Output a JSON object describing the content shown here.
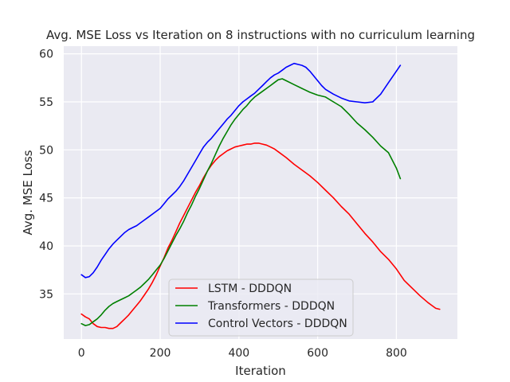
{
  "chart_data": {
    "type": "line",
    "title": "Avg. MSE Loss vs Iteration on 8 instructions with no curriculum learning",
    "xlabel": "Iteration",
    "ylabel": "Avg. MSE Loss",
    "xlim": [
      -45,
      955
    ],
    "ylim": [
      30.3,
      60.8
    ],
    "xticks": [
      0,
      200,
      400,
      600,
      800
    ],
    "yticks": [
      35,
      40,
      45,
      50,
      55,
      60
    ],
    "grid": true,
    "legend_position": "lower-center",
    "series": [
      {
        "name": "LSTM - DDDQN",
        "color": "#ff0000",
        "x": [
          0,
          10,
          20,
          30,
          40,
          50,
          60,
          70,
          80,
          90,
          100,
          110,
          120,
          130,
          140,
          150,
          160,
          170,
          180,
          190,
          200,
          210,
          220,
          230,
          240,
          250,
          260,
          270,
          280,
          290,
          300,
          310,
          320,
          330,
          340,
          350,
          360,
          370,
          380,
          390,
          400,
          410,
          420,
          430,
          440,
          450,
          460,
          470,
          480,
          490,
          500,
          520,
          540,
          560,
          580,
          600,
          620,
          640,
          660,
          680,
          700,
          720,
          740,
          760,
          780,
          800,
          820,
          840,
          860,
          880,
          900,
          910
        ],
        "values": [
          32.9,
          32.6,
          32.4,
          31.9,
          31.6,
          31.5,
          31.5,
          31.4,
          31.4,
          31.6,
          32.0,
          32.4,
          32.8,
          33.3,
          33.8,
          34.3,
          34.9,
          35.5,
          36.2,
          37.0,
          37.9,
          38.8,
          39.8,
          40.6,
          41.5,
          42.4,
          43.2,
          44.0,
          44.8,
          45.6,
          46.3,
          47.1,
          47.8,
          48.4,
          48.9,
          49.3,
          49.6,
          49.9,
          50.1,
          50.3,
          50.4,
          50.5,
          50.6,
          50.6,
          50.7,
          50.7,
          50.6,
          50.5,
          50.3,
          50.1,
          49.8,
          49.2,
          48.5,
          47.9,
          47.3,
          46.6,
          45.8,
          45.0,
          44.1,
          43.3,
          42.3,
          41.3,
          40.4,
          39.4,
          38.6,
          37.6,
          36.4,
          35.6,
          34.8,
          34.1,
          33.5,
          33.4
        ]
      },
      {
        "name": "Transformers - DDDQN",
        "color": "#008000",
        "x": [
          0,
          10,
          20,
          30,
          40,
          50,
          60,
          70,
          80,
          90,
          100,
          110,
          120,
          130,
          140,
          150,
          160,
          170,
          180,
          190,
          200,
          210,
          220,
          230,
          240,
          250,
          260,
          270,
          280,
          290,
          300,
          310,
          320,
          330,
          340,
          350,
          360,
          370,
          380,
          390,
          400,
          410,
          420,
          430,
          440,
          450,
          460,
          470,
          480,
          490,
          500,
          510,
          520,
          540,
          560,
          580,
          600,
          620,
          640,
          660,
          680,
          700,
          720,
          740,
          760,
          780,
          800,
          810
        ],
        "values": [
          31.9,
          31.7,
          31.8,
          32.1,
          32.4,
          32.8,
          33.3,
          33.7,
          34.0,
          34.2,
          34.4,
          34.6,
          34.8,
          35.1,
          35.4,
          35.7,
          36.1,
          36.5,
          37.0,
          37.5,
          38.0,
          38.7,
          39.5,
          40.3,
          41.1,
          41.8,
          42.6,
          43.5,
          44.3,
          45.2,
          46.0,
          46.9,
          47.8,
          48.6,
          49.5,
          50.4,
          51.2,
          51.9,
          52.6,
          53.2,
          53.7,
          54.2,
          54.6,
          55.1,
          55.5,
          55.8,
          56.1,
          56.4,
          56.7,
          57.0,
          57.3,
          57.4,
          57.2,
          56.8,
          56.4,
          56.0,
          55.7,
          55.5,
          55.0,
          54.5,
          53.7,
          52.8,
          52.1,
          51.3,
          50.4,
          49.7,
          48.1,
          47.0
        ]
      },
      {
        "name": "Control Vectors - DDDQN",
        "color": "#0000ff",
        "x": [
          0,
          10,
          20,
          30,
          40,
          50,
          60,
          70,
          80,
          90,
          100,
          110,
          120,
          130,
          140,
          150,
          160,
          170,
          180,
          190,
          200,
          210,
          220,
          230,
          240,
          250,
          260,
          270,
          280,
          290,
          300,
          310,
          320,
          330,
          340,
          350,
          360,
          370,
          380,
          390,
          400,
          410,
          420,
          430,
          440,
          450,
          460,
          470,
          480,
          490,
          500,
          510,
          520,
          530,
          540,
          550,
          560,
          570,
          580,
          590,
          600,
          610,
          620,
          640,
          660,
          680,
          700,
          720,
          740,
          760,
          770,
          780,
          790,
          800,
          810
        ],
        "values": [
          37.0,
          36.7,
          36.8,
          37.2,
          37.8,
          38.5,
          39.1,
          39.7,
          40.2,
          40.6,
          41.0,
          41.4,
          41.7,
          41.9,
          42.1,
          42.4,
          42.7,
          43.0,
          43.3,
          43.6,
          43.9,
          44.4,
          44.9,
          45.3,
          45.7,
          46.2,
          46.8,
          47.5,
          48.2,
          48.9,
          49.6,
          50.3,
          50.8,
          51.2,
          51.7,
          52.2,
          52.7,
          53.2,
          53.6,
          54.1,
          54.6,
          55.0,
          55.3,
          55.6,
          55.9,
          56.3,
          56.7,
          57.1,
          57.5,
          57.8,
          58.0,
          58.3,
          58.6,
          58.8,
          59.0,
          58.9,
          58.8,
          58.6,
          58.2,
          57.7,
          57.2,
          56.7,
          56.3,
          55.8,
          55.4,
          55.1,
          55.0,
          54.9,
          55.0,
          55.8,
          56.4,
          57.0,
          57.6,
          58.2,
          58.8
        ]
      }
    ]
  }
}
